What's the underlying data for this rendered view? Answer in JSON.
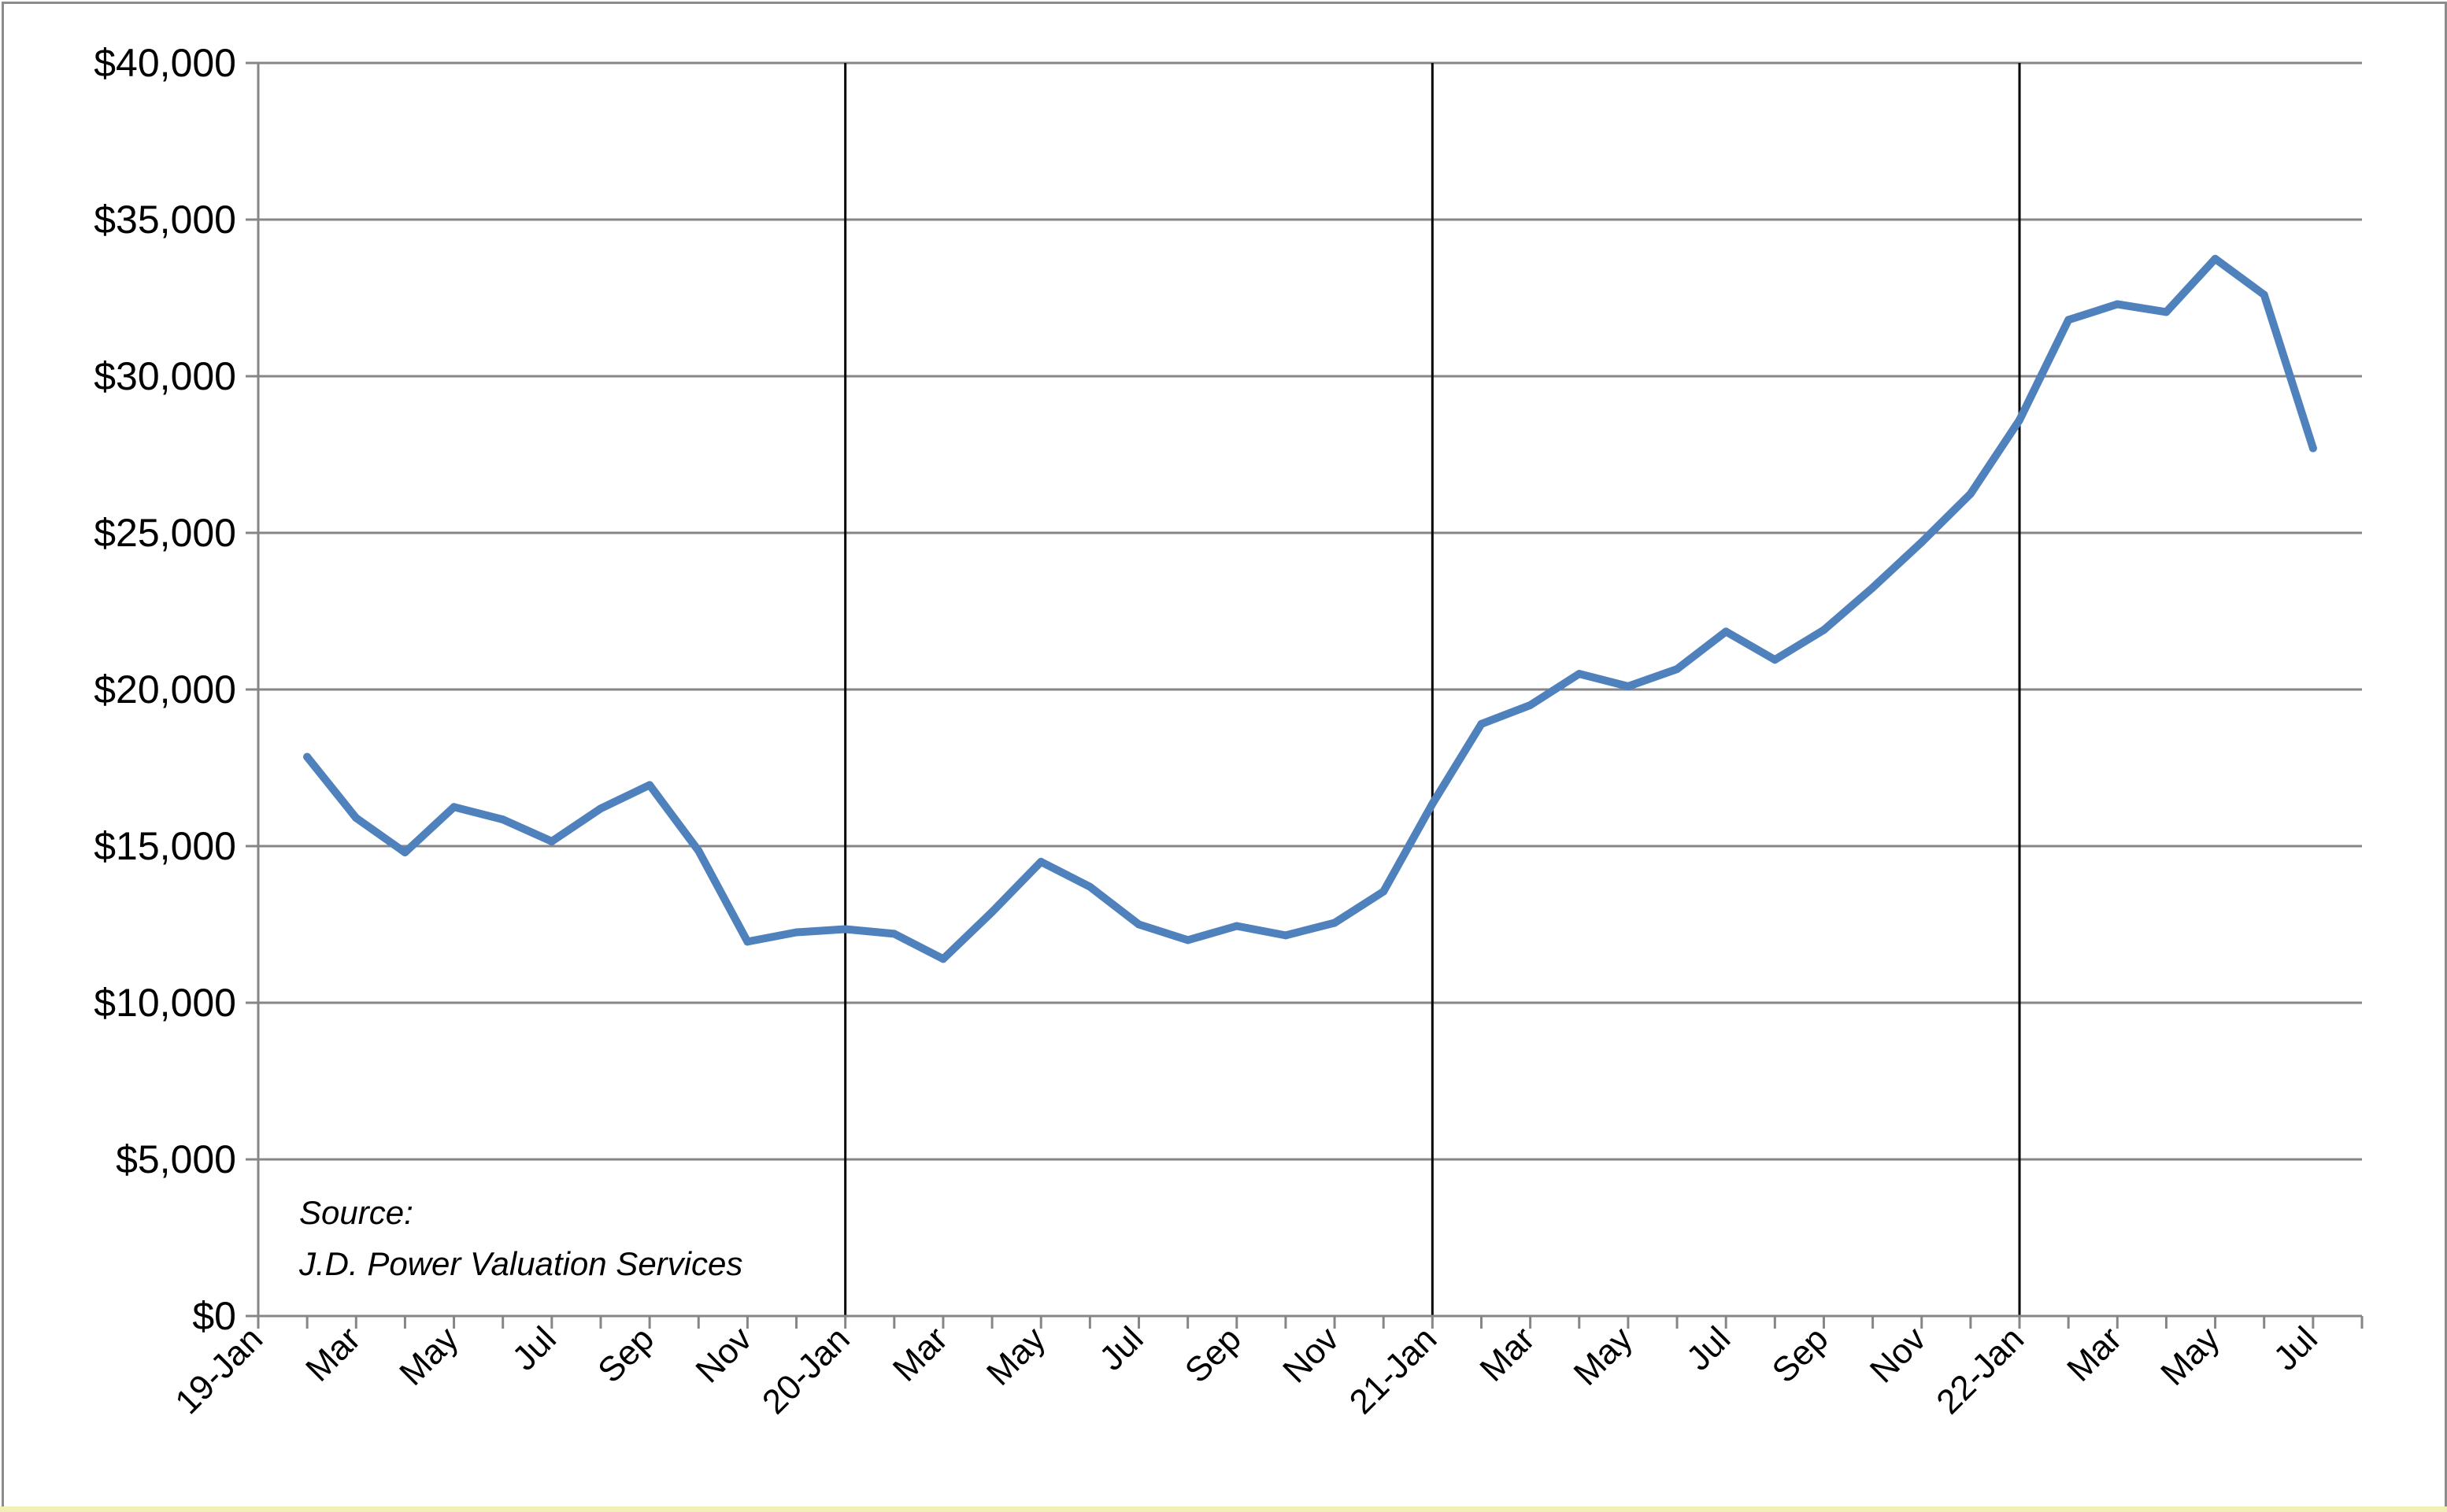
{
  "chart_data": {
    "type": "line",
    "title": "",
    "xlabel": "",
    "ylabel": "",
    "ylim": [
      0,
      40000
    ],
    "y_ticks": [
      0,
      5000,
      10000,
      15000,
      20000,
      25000,
      30000,
      35000,
      40000
    ],
    "y_tick_labels": [
      "$0",
      "$5,000",
      "$10,000",
      "$15,000",
      "$20,000",
      "$25,000",
      "$30,000",
      "$35,000",
      "$40,000"
    ],
    "x_tick_labels": [
      "19-Jan",
      "Mar",
      "May",
      "Jul",
      "Sep",
      "Nov",
      "20-Jan",
      "Mar",
      "May",
      "Jul",
      "Sep",
      "Nov",
      "21-Jan",
      "Mar",
      "May",
      "Jul",
      "Sep",
      "Nov",
      "22-Jan",
      "Mar",
      "May",
      "Jul"
    ],
    "grid": true,
    "year_boundaries": [
      "2020-01",
      "2021-01",
      "2022-01"
    ],
    "annotation": {
      "line1": "Source:",
      "line2": "J.D. Power Valuation Services"
    },
    "series": [
      {
        "color": "#4f81bd",
        "x": [
          "2019-02",
          "2019-03",
          "2019-04",
          "2019-05",
          "2019-06",
          "2019-07",
          "2019-08",
          "2019-09",
          "2019-10",
          "2019-11",
          "2019-12",
          "2020-01",
          "2020-02",
          "2020-03",
          "2020-04",
          "2020-05",
          "2020-06",
          "2020-07",
          "2020-08",
          "2020-09",
          "2020-10",
          "2020-11",
          "2020-12",
          "2021-01",
          "2021-02",
          "2021-03",
          "2021-04",
          "2021-05",
          "2021-06",
          "2021-07",
          "2021-08",
          "2021-09",
          "2021-10",
          "2021-11",
          "2021-12",
          "2022-01",
          "2022-02",
          "2022-03",
          "2022-04",
          "2022-05",
          "2022-06",
          "2022-07"
        ],
        "values": [
          17850,
          15900,
          14800,
          16250,
          15850,
          15150,
          16200,
          16950,
          14850,
          11950,
          12250,
          12350,
          12200,
          11400,
          12900,
          14500,
          13700,
          12500,
          12000,
          12450,
          12150,
          12550,
          13550,
          16350,
          18900,
          19500,
          20500,
          20100,
          20650,
          21850,
          20950,
          21900,
          23250,
          24700,
          26250,
          28600,
          31800,
          32300,
          32050,
          33750,
          32600,
          27700
        ]
      }
    ]
  }
}
